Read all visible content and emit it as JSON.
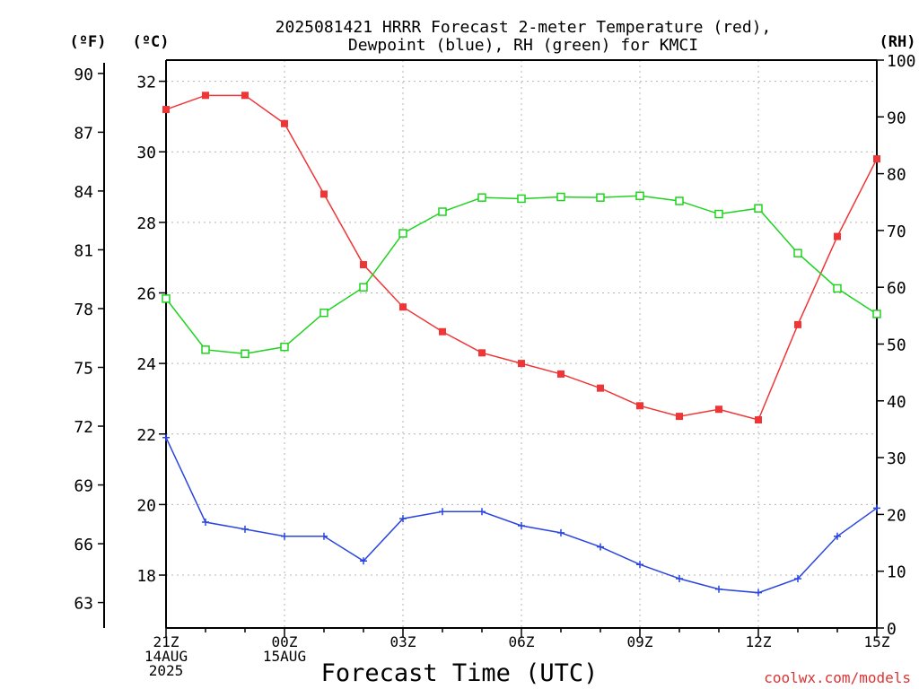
{
  "header": {
    "title_line1": "2025081421 HRRR Forecast 2-meter Temperature (red),",
    "title_line2": "Dewpoint (blue), RH (green) for KMCI",
    "unit_f": "(ºF)",
    "unit_c": "(ºC)",
    "unit_rh": "(RH)"
  },
  "footer": {
    "xlabel": "Forecast Time (UTC)",
    "credit": "coolwx.com/models"
  },
  "colors": {
    "temperature": "#ef3535",
    "dewpoint": "#2a45e0",
    "rh": "#1fd31f",
    "credit": "#dd3333",
    "grid": "#b4b4b4"
  },
  "chart_data": {
    "type": "line",
    "x": [
      "21Z",
      "22Z",
      "23Z",
      "00Z",
      "01Z",
      "02Z",
      "03Z",
      "04Z",
      "05Z",
      "06Z",
      "07Z",
      "08Z",
      "09Z",
      "10Z",
      "11Z",
      "12Z",
      "13Z",
      "14Z",
      "15Z"
    ],
    "x_tick_labels": [
      {
        "index": 0,
        "lines": [
          "21Z",
          "14AUG",
          "2025"
        ]
      },
      {
        "index": 3,
        "lines": [
          "00Z",
          "15AUG"
        ]
      },
      {
        "index": 6,
        "lines": [
          "03Z"
        ]
      },
      {
        "index": 9,
        "lines": [
          "06Z"
        ]
      },
      {
        "index": 12,
        "lines": [
          "09Z"
        ]
      },
      {
        "index": 15,
        "lines": [
          "12Z"
        ]
      },
      {
        "index": 18,
        "lines": [
          "15Z"
        ]
      }
    ],
    "celsius_axis": {
      "range": [
        16.5,
        32.6
      ],
      "ticks": [
        18,
        20,
        22,
        24,
        26,
        28,
        30,
        32
      ]
    },
    "fahrenheit_axis": {
      "ticks": [
        63,
        66,
        69,
        72,
        75,
        78,
        81,
        84,
        87,
        90
      ]
    },
    "rh_axis": {
      "range": [
        0,
        100
      ],
      "ticks": [
        0,
        10,
        20,
        30,
        40,
        50,
        60,
        70,
        80,
        90,
        100
      ]
    },
    "grid": true,
    "series": [
      {
        "name": "Temperature",
        "axis": "celsius",
        "marker": "filled-square",
        "color": "#ef3535",
        "values": [
          31.2,
          31.6,
          31.6,
          30.8,
          28.8,
          26.8,
          25.6,
          24.9,
          24.3,
          24.0,
          23.7,
          23.3,
          22.8,
          22.5,
          22.7,
          22.4,
          25.1,
          27.6,
          29.8
        ]
      },
      {
        "name": "Dewpoint",
        "axis": "celsius",
        "marker": "plus",
        "color": "#2a45e0",
        "values": [
          21.9,
          19.5,
          19.3,
          19.1,
          19.1,
          18.4,
          19.6,
          19.8,
          19.8,
          19.4,
          19.2,
          18.8,
          18.3,
          17.9,
          17.6,
          17.5,
          17.9,
          19.1,
          19.9
        ]
      },
      {
        "name": "RH",
        "axis": "rh",
        "marker": "open-square",
        "color": "#1fd31f",
        "values": [
          58,
          49,
          48.3,
          49.5,
          55.5,
          60,
          69.5,
          73.3,
          75.8,
          75.6,
          75.9,
          75.8,
          76.1,
          75.2,
          72.9,
          73.9,
          66,
          59.8,
          55.3
        ]
      }
    ]
  }
}
